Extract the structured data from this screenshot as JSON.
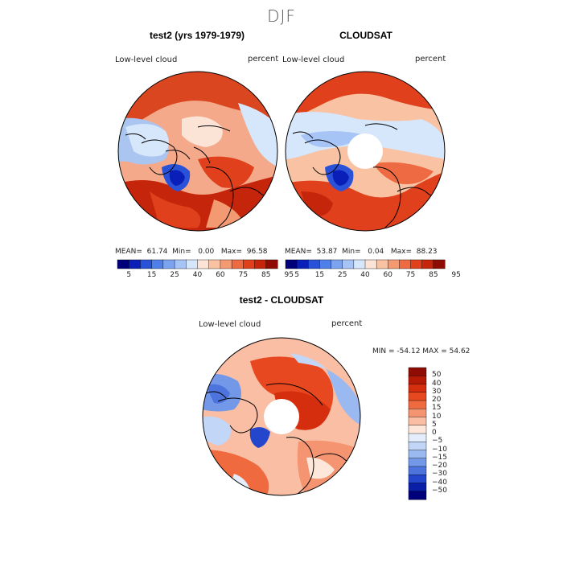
{
  "season": "DJF",
  "panels": {
    "model": {
      "title": "test2 (yrs 1979-1979)",
      "variable": "Low-level cloud",
      "units": "percent",
      "stats": {
        "mean_label": "MEAN=",
        "mean": "61.74",
        "min_label": "Min=",
        "min": "0.00",
        "max_label": "Max=",
        "max": "96.58"
      }
    },
    "obs": {
      "title": "CLOUDSAT",
      "variable": "Low-level cloud",
      "units": "percent",
      "stats": {
        "mean_label": "MEAN=",
        "mean": "53.87",
        "min_label": "Min=",
        "min": "0.04",
        "max_label": "Max=",
        "max": "88.23"
      }
    },
    "diff": {
      "title": "test2 - CLOUDSAT",
      "variable": "Low-level cloud",
      "units": "percent",
      "minmax": "MIN = -54.12 MAX =  54.62"
    }
  },
  "top_colorbar": {
    "tick_labels": [
      "5",
      "15",
      "25",
      "40",
      "60",
      "75",
      "85",
      "95"
    ],
    "colors": [
      "#00007a",
      "#0a1fb8",
      "#2a52d8",
      "#4f7fe8",
      "#7ba3f0",
      "#a7c4f6",
      "#d6e6fb",
      "#fbe4d6",
      "#f9c2a3",
      "#f49a72",
      "#ee6a42",
      "#e0401c",
      "#c5260b",
      "#8e0c03"
    ]
  },
  "diff_colorbar": {
    "labels": [
      "50",
      "40",
      "30",
      "20",
      "15",
      "10",
      "5",
      "0",
      "−5",
      "−10",
      "−15",
      "−20",
      "−30",
      "−40",
      "−50"
    ],
    "colors": [
      "#8e0c03",
      "#b51a05",
      "#d42e0e",
      "#e8481f",
      "#f06a3f",
      "#f59470",
      "#f9bea3",
      "#fde6da",
      "#e3edfb",
      "#c2d6f7",
      "#9bb9f1",
      "#7398e8",
      "#4d73dd",
      "#2446cc",
      "#0a1fa8",
      "#00007a"
    ]
  }
}
